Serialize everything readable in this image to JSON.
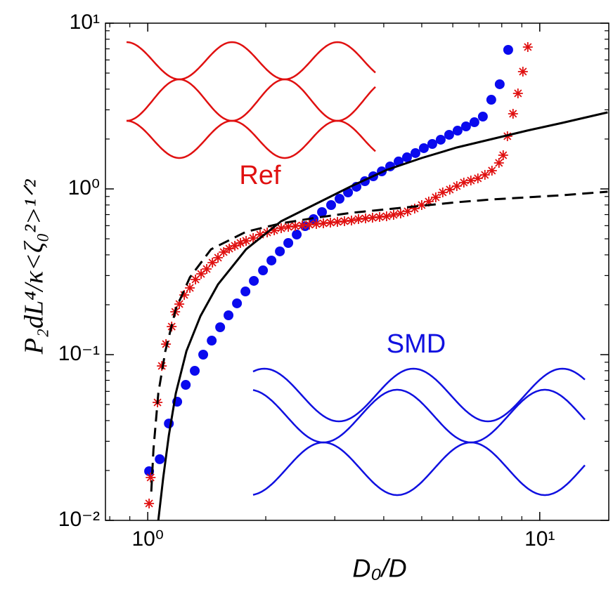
{
  "chart_data": {
    "type": "scatter",
    "xscale": "log",
    "yscale": "log",
    "xlabel": "D₀/D",
    "ylabel": "P₂dL⁴/κ<ζ₀²>¹ᐟ²",
    "xlim": [
      0.78,
      15
    ],
    "ylim": [
      0.01,
      10
    ],
    "xticks": [
      {
        "value": 1,
        "label": "10⁰"
      },
      {
        "value": 10,
        "label": "10¹"
      }
    ],
    "yticks": [
      {
        "value": 0.01,
        "label": "10⁻²"
      },
      {
        "value": 0.1,
        "label": "10⁻¹"
      },
      {
        "value": 1,
        "label": "10⁰"
      },
      {
        "value": 10,
        "label": "10¹"
      }
    ],
    "annotations": [
      {
        "text": "Ref",
        "color": "#e01010"
      },
      {
        "text": "SMD",
        "color": "#1010e0"
      }
    ],
    "series": [
      {
        "type": "scatter",
        "marker": "circle",
        "color": "#0a0aee",
        "x": [
          1.008,
          1.073,
          1.132,
          1.189,
          1.25,
          1.318,
          1.385,
          1.456,
          1.53,
          1.607,
          1.689,
          1.775,
          1.865,
          1.968,
          2.068,
          2.173,
          2.283,
          2.399,
          2.52,
          2.648,
          2.783,
          2.936,
          3.085,
          3.243,
          3.407,
          3.58,
          3.761,
          3.953,
          4.153,
          4.364,
          4.585,
          4.818,
          5.062,
          5.319,
          5.589,
          5.873,
          6.171,
          6.484,
          6.813,
          7.159,
          7.522,
          7.904,
          8.308
        ],
        "values": [
          0.0198,
          0.0234,
          0.0384,
          0.052,
          0.0657,
          0.0799,
          0.1,
          0.1215,
          0.1463,
          0.1727,
          0.2039,
          0.2406,
          0.2786,
          0.3224,
          0.3697,
          0.4197,
          0.4718,
          0.5303,
          0.5963,
          0.6573,
          0.7247,
          0.799,
          0.8724,
          0.9524,
          1.03,
          1.113,
          1.192,
          1.276,
          1.367,
          1.464,
          1.551,
          1.645,
          1.762,
          1.867,
          1.98,
          2.12,
          2.247,
          2.383,
          2.526,
          2.732,
          3.452,
          4.28,
          6.902
        ]
      },
      {
        "type": "scatter",
        "marker": "asterisk",
        "color": "#e01010",
        "x": [
          1.008,
          1.017,
          1.059,
          1.086,
          1.113,
          1.151,
          1.175,
          1.204,
          1.239,
          1.281,
          1.324,
          1.368,
          1.414,
          1.462,
          1.511,
          1.562,
          1.614,
          1.668,
          1.724,
          1.782,
          1.857,
          1.935,
          2.017,
          2.102,
          2.19,
          2.283,
          2.379,
          2.479,
          2.583,
          2.692,
          2.806,
          2.924,
          3.047,
          3.175,
          3.309,
          3.448,
          3.594,
          3.745,
          3.903,
          4.067,
          4.238,
          4.416,
          4.602,
          4.797,
          4.999,
          5.209,
          5.429,
          5.657,
          5.895,
          6.144,
          6.402,
          6.672,
          6.953,
          7.246,
          7.551,
          7.869,
          8.067,
          8.269,
          8.547,
          8.8,
          9.057,
          9.323
        ],
        "values": [
          0.01264,
          0.01814,
          0.0515,
          0.0855,
          0.1158,
          0.1477,
          0.1813,
          0.2019,
          0.2292,
          0.2527,
          0.2841,
          0.3071,
          0.3288,
          0.3591,
          0.3844,
          0.4156,
          0.4363,
          0.4538,
          0.4718,
          0.4858,
          0.5051,
          0.5303,
          0.5461,
          0.5623,
          0.579,
          0.5904,
          0.5963,
          0.6021,
          0.608,
          0.614,
          0.62,
          0.6261,
          0.6322,
          0.6384,
          0.6446,
          0.6573,
          0.6637,
          0.6703,
          0.6768,
          0.6834,
          0.697,
          0.7108,
          0.732,
          0.7612,
          0.799,
          0.8389,
          0.8897,
          0.9524,
          0.9903,
          1.04,
          1.092,
          1.124,
          1.158,
          1.215,
          1.289,
          1.435,
          1.597,
          2.079,
          2.841,
          3.77,
          5.101,
          7.177
        ]
      },
      {
        "type": "line",
        "dashed": false,
        "color": "#000000",
        "x": [
          1.064,
          1.095,
          1.132,
          1.179,
          1.255,
          1.363,
          1.511,
          1.782,
          2.19,
          2.692,
          3.309,
          4.067,
          4.999,
          6.144,
          7.551,
          9.284,
          11.41,
          14.9
        ],
        "values": [
          0.01,
          0.01814,
          0.0326,
          0.0585,
          0.105,
          0.1711,
          0.2653,
          0.4321,
          0.6384,
          0.8147,
          1.04,
          1.301,
          1.536,
          1.778,
          2.0,
          2.247,
          2.502,
          2.897
        ]
      },
      {
        "type": "line",
        "dashed": true,
        "color": "#000000",
        "x": [
          1.021,
          1.034,
          1.064,
          1.109,
          1.179,
          1.281,
          1.45,
          1.782,
          2.19,
          2.692,
          3.309,
          4.067,
          4.999,
          6.144,
          7.551,
          9.284,
          11.41,
          14.9
        ],
        "values": [
          0.01492,
          0.0268,
          0.0585,
          0.105,
          0.1886,
          0.2925,
          0.4321,
          0.5514,
          0.62,
          0.6703,
          0.7178,
          0.7537,
          0.7912,
          0.8307,
          0.8638,
          0.8897,
          0.9161,
          0.9616
        ]
      }
    ]
  }
}
